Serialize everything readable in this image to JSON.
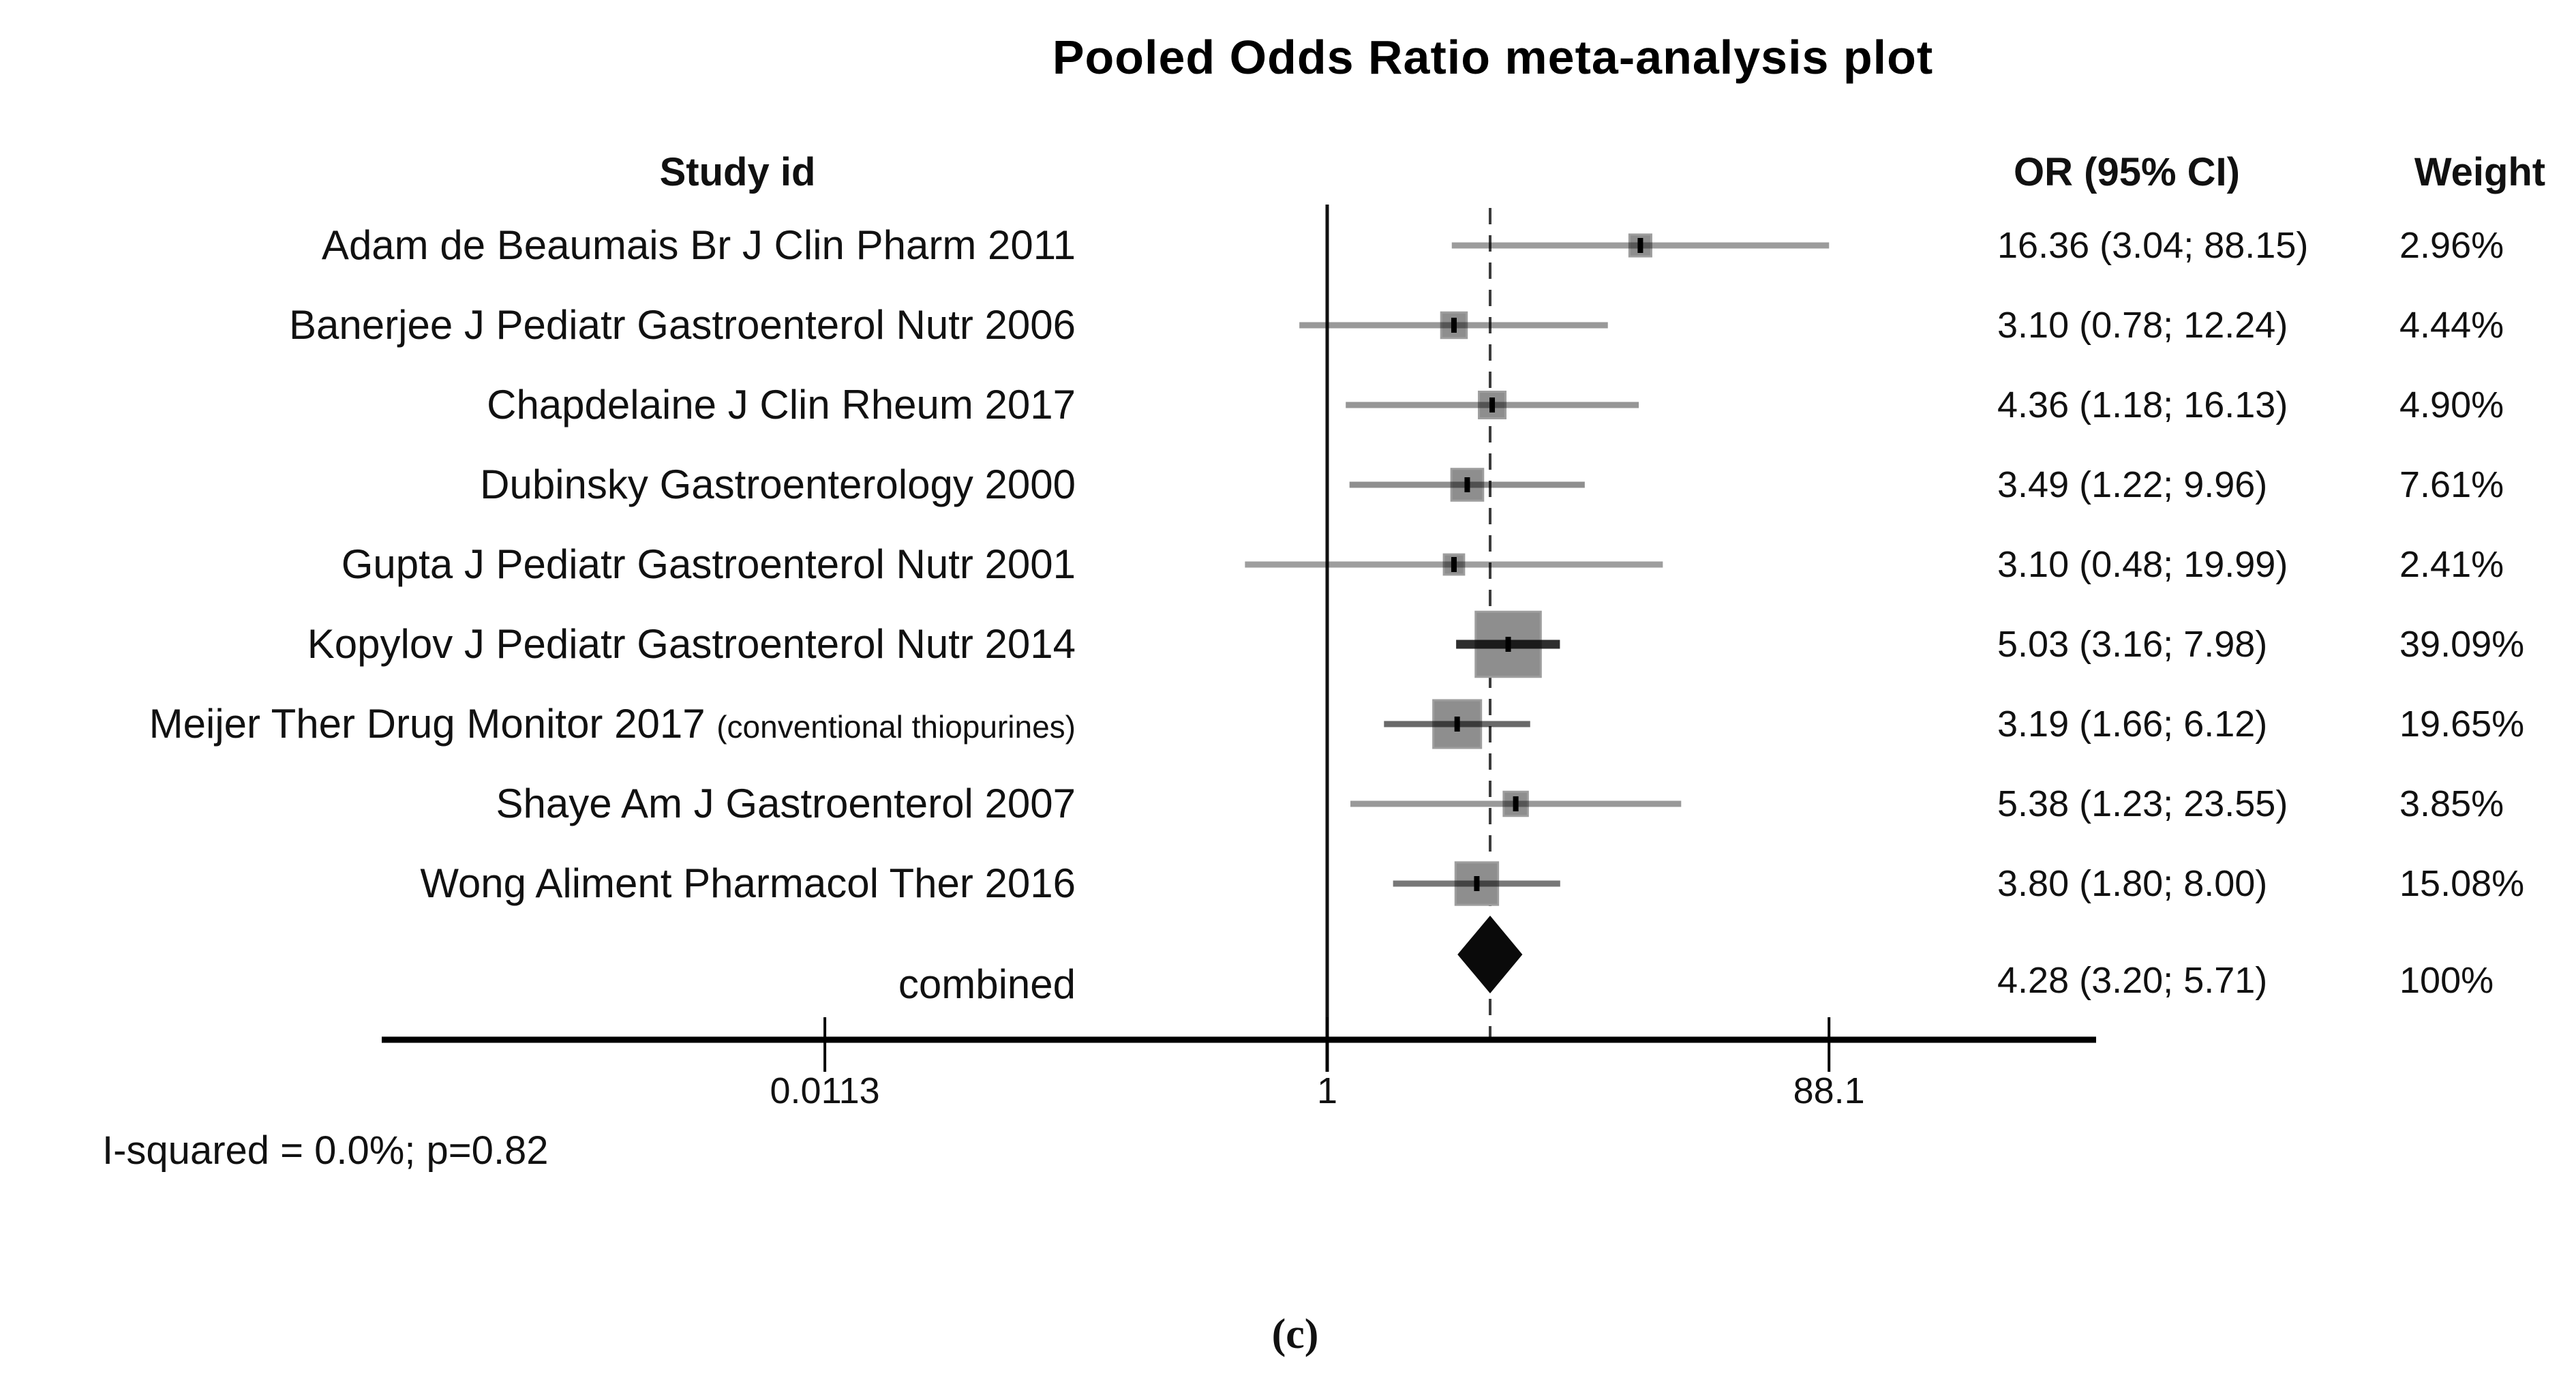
{
  "title": "Pooled Odds Ratio meta-analysis plot",
  "columns": {
    "study_id": "Study id",
    "or_ci": "OR (95% CI)",
    "weight": "Weight"
  },
  "stats_text": "I-squared = 0.0%; p=0.82",
  "caption": "(c)",
  "colors": {
    "square": "#8e8e8e",
    "square_edge": "#9e9e9e",
    "diamond": "#0a0a0a",
    "axis": "#000000",
    "reference_line": "#111111",
    "pooled_dashed_line": "#3c3c3c",
    "text": "#111111"
  },
  "chart_data": {
    "type": "scatter",
    "subtype": "forest-plot",
    "title": "Pooled Odds Ratio meta-analysis plot",
    "xlabel": "",
    "ylabel": "",
    "x_scale": "log10",
    "x_ticks": [
      {
        "label": "0.0113",
        "value": 0.0113
      },
      {
        "label": "1",
        "value": 1
      },
      {
        "label": "88.1",
        "value": 88.1
      }
    ],
    "x_range": [
      0.0113,
      88.1
    ],
    "grid": false,
    "legend": "none",
    "reference_line_value": 1,
    "pooled_line_value": 4.28,
    "studies": [
      {
        "label": "Adam de Beaumais Br J Clin Pharm 2011",
        "label_suffix_small": "",
        "or": 16.36,
        "ci_low": 3.04,
        "ci_high": 88.15,
        "or_ci_text": "16.36 (3.04; 88.15)",
        "weight_text": "2.96%",
        "weight_pct": 2.96
      },
      {
        "label": "Banerjee J Pediatr Gastroenterol Nutr 2006",
        "label_suffix_small": "",
        "or": 3.1,
        "ci_low": 0.78,
        "ci_high": 12.24,
        "or_ci_text": "3.10 (0.78; 12.24)",
        "weight_text": "4.44%",
        "weight_pct": 4.44
      },
      {
        "label": "Chapdelaine J Clin Rheum 2017",
        "label_suffix_small": "",
        "or": 4.36,
        "ci_low": 1.18,
        "ci_high": 16.13,
        "or_ci_text": "4.36 (1.18; 16.13)",
        "weight_text": "4.90%",
        "weight_pct": 4.9
      },
      {
        "label": "Dubinsky Gastroenterology 2000",
        "label_suffix_small": "",
        "or": 3.49,
        "ci_low": 1.22,
        "ci_high": 9.96,
        "or_ci_text": "3.49 (1.22; 9.96)",
        "weight_text": "7.61%",
        "weight_pct": 7.61
      },
      {
        "label": "Gupta J Pediatr Gastroenterol Nutr 2001",
        "label_suffix_small": "",
        "or": 3.1,
        "ci_low": 0.48,
        "ci_high": 19.99,
        "or_ci_text": "3.10 (0.48; 19.99)",
        "weight_text": "2.41%",
        "weight_pct": 2.41
      },
      {
        "label": "Kopylov J Pediatr Gastroenterol Nutr 2014",
        "label_suffix_small": "",
        "or": 5.03,
        "ci_low": 3.16,
        "ci_high": 7.98,
        "or_ci_text": "5.03 (3.16; 7.98)",
        "weight_text": "39.09%",
        "weight_pct": 39.09
      },
      {
        "label": "Meijer Ther Drug Monitor 2017 ",
        "label_suffix_small": "(conventional thiopurines)",
        "or": 3.19,
        "ci_low": 1.66,
        "ci_high": 6.12,
        "or_ci_text": "3.19 (1.66; 6.12)",
        "weight_text": "19.65%",
        "weight_pct": 19.65
      },
      {
        "label": "Shaye Am J Gastroenterol 2007",
        "label_suffix_small": "",
        "or": 5.38,
        "ci_low": 1.23,
        "ci_high": 23.55,
        "or_ci_text": "5.38 (1.23; 23.55)",
        "weight_text": "3.85%",
        "weight_pct": 3.85
      },
      {
        "label": "Wong Aliment Pharmacol Ther 2016",
        "label_suffix_small": "",
        "or": 3.8,
        "ci_low": 1.8,
        "ci_high": 8.0,
        "or_ci_text": "3.80 (1.80; 8.00)",
        "weight_text": "15.08%",
        "weight_pct": 15.08
      }
    ],
    "combined": {
      "label": "combined",
      "or": 4.28,
      "ci_low": 3.2,
      "ci_high": 5.71,
      "or_ci_text": "4.28 (3.20; 5.71)",
      "weight_text": "100%",
      "weight_pct": 100
    },
    "heterogeneity": {
      "i_squared": "0.0%",
      "p": "0.82"
    }
  }
}
